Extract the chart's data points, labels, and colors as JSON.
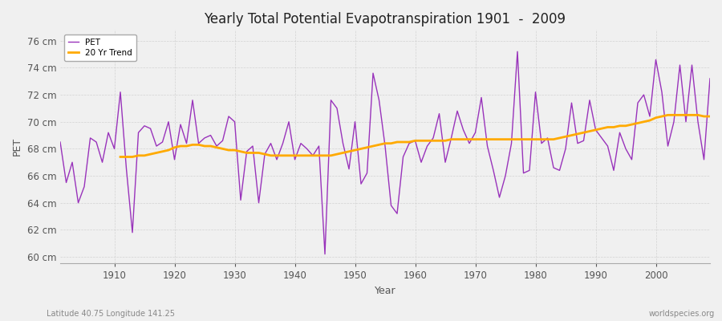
{
  "title": "Yearly Total Potential Evapotranspiration 1901  -  2009",
  "xlabel": "Year",
  "ylabel": "PET",
  "subtitle_left": "Latitude 40.75 Longitude 141.25",
  "subtitle_right": "worldspecies.org",
  "figure_background_color": "#f0f0f0",
  "plot_background_color": "#f0f0f0",
  "pet_color": "#9933bb",
  "trend_color": "#ffaa00",
  "ylim": [
    59.5,
    76.8
  ],
  "yticks": [
    60,
    62,
    64,
    66,
    68,
    70,
    72,
    74,
    76
  ],
  "ytick_labels": [
    "60 cm",
    "62 cm",
    "64 cm",
    "66 cm",
    "68 cm",
    "70 cm",
    "72 cm",
    "74 cm",
    "76 cm"
  ],
  "years": [
    1901,
    1902,
    1903,
    1904,
    1905,
    1906,
    1907,
    1908,
    1909,
    1910,
    1911,
    1912,
    1913,
    1914,
    1915,
    1916,
    1917,
    1918,
    1919,
    1920,
    1921,
    1922,
    1923,
    1924,
    1925,
    1926,
    1927,
    1928,
    1929,
    1930,
    1931,
    1932,
    1933,
    1934,
    1935,
    1936,
    1937,
    1938,
    1939,
    1940,
    1941,
    1942,
    1943,
    1944,
    1945,
    1946,
    1947,
    1948,
    1949,
    1950,
    1951,
    1952,
    1953,
    1954,
    1955,
    1956,
    1957,
    1958,
    1959,
    1960,
    1961,
    1962,
    1963,
    1964,
    1965,
    1966,
    1967,
    1968,
    1969,
    1970,
    1971,
    1972,
    1973,
    1974,
    1975,
    1976,
    1977,
    1978,
    1979,
    1980,
    1981,
    1982,
    1983,
    1984,
    1985,
    1986,
    1987,
    1988,
    1989,
    1990,
    1991,
    1992,
    1993,
    1994,
    1995,
    1996,
    1997,
    1998,
    1999,
    2000,
    2001,
    2002,
    2003,
    2004,
    2005,
    2006,
    2007,
    2008,
    2009
  ],
  "pet_values": [
    68.5,
    65.5,
    67.0,
    64.0,
    65.2,
    68.8,
    68.5,
    67.0,
    69.2,
    68.0,
    72.2,
    66.5,
    61.8,
    69.2,
    69.7,
    69.5,
    68.2,
    68.5,
    70.0,
    67.2,
    69.8,
    68.4,
    71.6,
    68.4,
    68.8,
    69.0,
    68.2,
    68.6,
    70.4,
    70.0,
    64.2,
    67.8,
    68.2,
    64.0,
    67.6,
    68.4,
    67.2,
    68.4,
    70.0,
    67.2,
    68.4,
    68.0,
    67.5,
    68.2,
    60.2,
    71.6,
    71.0,
    68.4,
    66.5,
    70.0,
    65.4,
    66.2,
    73.6,
    71.6,
    68.2,
    63.8,
    63.2,
    67.4,
    68.4,
    68.6,
    67.0,
    68.2,
    68.8,
    70.6,
    67.0,
    68.8,
    70.8,
    69.4,
    68.4,
    69.2,
    71.8,
    68.2,
    66.4,
    64.4,
    66.0,
    68.4,
    75.2,
    66.2,
    66.4,
    72.2,
    68.4,
    68.8,
    66.6,
    66.4,
    68.0,
    71.4,
    68.4,
    68.6,
    71.6,
    69.4,
    68.8,
    68.2,
    66.4,
    69.2,
    68.0,
    67.2,
    71.4,
    72.0,
    70.4,
    74.6,
    72.2,
    68.2,
    70.0,
    74.2,
    70.0,
    74.2,
    70.0,
    67.2,
    73.2
  ],
  "trend_values": [
    null,
    null,
    null,
    null,
    null,
    null,
    null,
    null,
    null,
    null,
    67.4,
    67.4,
    67.4,
    67.5,
    67.5,
    67.6,
    67.7,
    67.8,
    67.9,
    68.1,
    68.2,
    68.2,
    68.3,
    68.3,
    68.2,
    68.2,
    68.1,
    68.0,
    67.9,
    67.9,
    67.8,
    67.7,
    67.7,
    67.7,
    67.6,
    67.5,
    67.5,
    67.5,
    67.5,
    67.5,
    67.5,
    67.5,
    67.5,
    67.5,
    67.5,
    67.5,
    67.6,
    67.7,
    67.8,
    67.9,
    68.0,
    68.1,
    68.2,
    68.3,
    68.4,
    68.4,
    68.5,
    68.5,
    68.5,
    68.6,
    68.6,
    68.6,
    68.6,
    68.6,
    68.6,
    68.7,
    68.7,
    68.7,
    68.7,
    68.7,
    68.7,
    68.7,
    68.7,
    68.7,
    68.7,
    68.7,
    68.7,
    68.7,
    68.7,
    68.7,
    68.7,
    68.7,
    68.7,
    68.8,
    68.9,
    69.0,
    69.1,
    69.2,
    69.3,
    69.4,
    69.5,
    69.6,
    69.6,
    69.7,
    69.7,
    69.8,
    69.9,
    70.0,
    70.1,
    70.3,
    70.4,
    70.5,
    70.5,
    70.5,
    70.5,
    70.5,
    70.5,
    70.4,
    70.4
  ]
}
